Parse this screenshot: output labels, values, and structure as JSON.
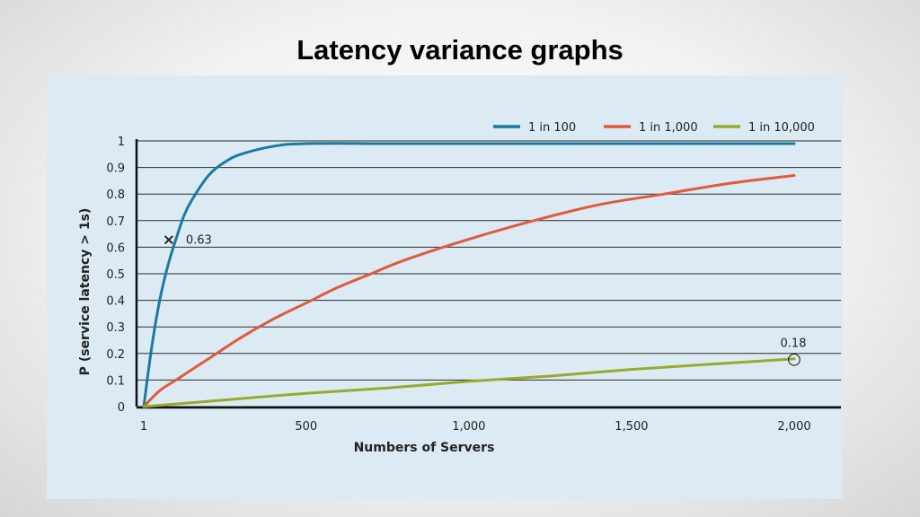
{
  "slide": {
    "title": "Latency variance graphs"
  },
  "chart_data": {
    "type": "line",
    "title": "",
    "xlabel": "Numbers of Servers",
    "ylabel": "P (service latency > 1s)",
    "xlim": [
      1,
      2000
    ],
    "ylim": [
      0,
      1
    ],
    "x_ticks": [
      1,
      500,
      1000,
      1500,
      2000
    ],
    "x_tick_labels": [
      "1",
      "500",
      "1,000",
      "1,500",
      "2,000"
    ],
    "y_ticks": [
      0,
      0.1,
      0.2,
      0.3,
      0.4,
      0.5,
      0.6,
      0.7,
      0.8,
      0.9,
      1
    ],
    "y_tick_labels": [
      "0",
      "0.1",
      "0.2",
      "0.3",
      "0.4",
      "0.5",
      "0.6",
      "0.7",
      "0.8",
      "0.9",
      "1"
    ],
    "grid": "horizontal",
    "legend_position": "top-right",
    "series": [
      {
        "name": "1 in 100",
        "color": "#1a7aa0",
        "x": [
          1,
          25,
          50,
          75,
          100,
          125,
          150,
          200,
          250,
          300,
          400,
          500,
          750,
          1000,
          1500,
          2000
        ],
        "y": [
          0.0,
          0.22,
          0.4,
          0.53,
          0.63,
          0.72,
          0.78,
          0.87,
          0.92,
          0.95,
          0.98,
          0.99,
          0.99,
          0.99,
          0.99,
          0.99
        ]
      },
      {
        "name": "1 in 1,000",
        "color": "#e05a3c",
        "x": [
          1,
          50,
          100,
          200,
          300,
          400,
          500,
          600,
          700,
          800,
          1000,
          1200,
          1400,
          1600,
          1800,
          2000
        ],
        "y": [
          0.0,
          0.06,
          0.1,
          0.18,
          0.26,
          0.33,
          0.39,
          0.45,
          0.5,
          0.55,
          0.63,
          0.7,
          0.76,
          0.8,
          0.84,
          0.87
        ]
      },
      {
        "name": "1 in 10,000",
        "color": "#96aa2e",
        "x": [
          1,
          250,
          500,
          750,
          1000,
          1250,
          1500,
          1750,
          2000
        ],
        "y": [
          0.0,
          0.025,
          0.05,
          0.07,
          0.095,
          0.115,
          0.14,
          0.16,
          0.18
        ]
      }
    ],
    "annotations": [
      {
        "x": 100,
        "y": 0.63,
        "label": "0.63",
        "marker": "×"
      },
      {
        "x": 2000,
        "y": 0.18,
        "label": "0.18",
        "marker": "○"
      }
    ]
  }
}
